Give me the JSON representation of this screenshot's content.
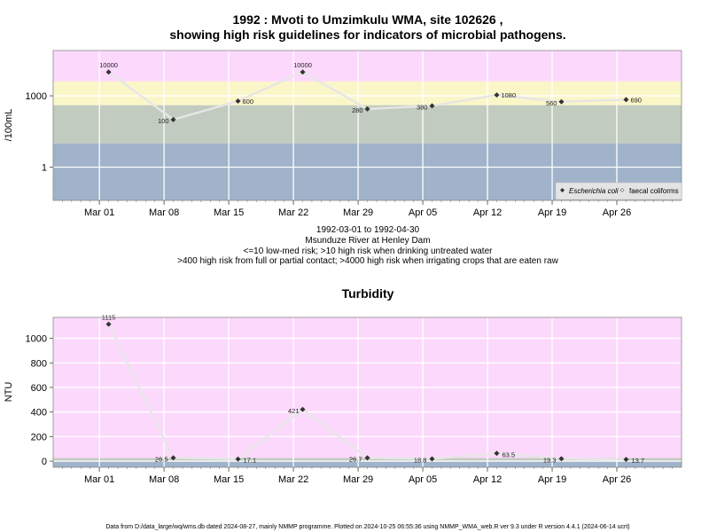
{
  "chart_data": [
    {
      "type": "line",
      "title_line1": "1992 : Mvoti to Umzimkulu WMA, site 102626 ,",
      "title_line2": "showing high risk guidelines for indicators of microbial pathogens.",
      "ylabel": "/100mL",
      "yscale": "log",
      "yticks": [
        1,
        1000
      ],
      "x_ticks": [
        "Mar 01",
        "Mar 08",
        "Mar 15",
        "Mar 22",
        "Mar 29",
        "Apr 05",
        "Apr 12",
        "Apr 19",
        "Apr 26"
      ],
      "bands": [
        {
          "from": 4000,
          "to": 100000,
          "color": "#fcd9fc"
        },
        {
          "from": 400,
          "to": 4000,
          "color": "#fbf6c8"
        },
        {
          "from": 10,
          "to": 400,
          "color": "#c2cbbf"
        },
        {
          "from": 0.01,
          "to": 10,
          "color": "#a0b3cb"
        }
      ],
      "series": [
        {
          "name": "Escherichia coli",
          "points": [
            {
              "date": "1992-03-02",
              "value": 10000,
              "label": "10000"
            },
            {
              "date": "1992-03-09",
              "value": 100,
              "label": "100"
            },
            {
              "date": "1992-03-16",
              "value": 600,
              "label": "600"
            },
            {
              "date": "1992-03-23",
              "value": 10000,
              "label": "10000"
            },
            {
              "date": "1992-03-30",
              "value": 280,
              "label": "280"
            },
            {
              "date": "1992-04-06",
              "value": 380,
              "label": "380"
            },
            {
              "date": "1992-04-13",
              "value": 1080,
              "label": "1080"
            },
            {
              "date": "1992-04-20",
              "value": 560,
              "label": "560"
            },
            {
              "date": "1992-04-27",
              "value": 690,
              "label": "690"
            }
          ]
        }
      ],
      "legend": {
        "items": [
          "Escherichia coli",
          "faecal coliforms"
        ],
        "placement": "bottom-right"
      },
      "caption": [
        "1992-03-01 to 1992-04-30",
        "Msunduze River at Henley Dam",
        "<=10 low-med risk; >10 high risk when drinking untreated water",
        ">400 high risk from full or partial contact; >4000 high risk when irrigating crops that are eaten raw"
      ]
    },
    {
      "type": "line",
      "title": "Turbidity",
      "ylabel": "NTU",
      "ylim": [
        -50,
        1170
      ],
      "yticks": [
        0,
        200,
        400,
        600,
        800,
        1000
      ],
      "x_ticks": [
        "Mar 01",
        "Mar 08",
        "Mar 15",
        "Mar 22",
        "Mar 29",
        "Apr 05",
        "Apr 12",
        "Apr 19",
        "Apr 26"
      ],
      "bands": [
        {
          "from": 25,
          "to": 1170,
          "color": "#fcd9fc"
        },
        {
          "from": 5,
          "to": 25,
          "color": "#c2cbbf"
        },
        {
          "from": -50,
          "to": 5,
          "color": "#a0b3cb"
        }
      ],
      "series": [
        {
          "name": "Turbidity",
          "points": [
            {
              "date": "1992-03-02",
              "value": 1115,
              "label": "1115"
            },
            {
              "date": "1992-03-09",
              "value": 26.5,
              "label": "26.5"
            },
            {
              "date": "1992-03-16",
              "value": 17.1,
              "label": "17.1"
            },
            {
              "date": "1992-03-23",
              "value": 421,
              "label": "421"
            },
            {
              "date": "1992-03-30",
              "value": 26.7,
              "label": "26.7"
            },
            {
              "date": "1992-04-06",
              "value": 18.8,
              "label": "18.8"
            },
            {
              "date": "1992-04-13",
              "value": 63.5,
              "label": "63.5"
            },
            {
              "date": "1992-04-20",
              "value": 19.3,
              "label": "19.3"
            },
            {
              "date": "1992-04-27",
              "value": 13.7,
              "label": "13.7"
            }
          ]
        }
      ]
    }
  ],
  "footer": "Data from D:/data_large/wq/wms.db dated 2024-08-27, mainly NMMP programme. Plotted on 2024-10-25 06:55:36 using NMMP_WMA_web.R ver 9.3 under R version 4.4.1 (2024-06-14 ucrt)",
  "colors": {
    "marker": "#333333",
    "line": "#e6e6e6",
    "grid": "#ffffff"
  }
}
